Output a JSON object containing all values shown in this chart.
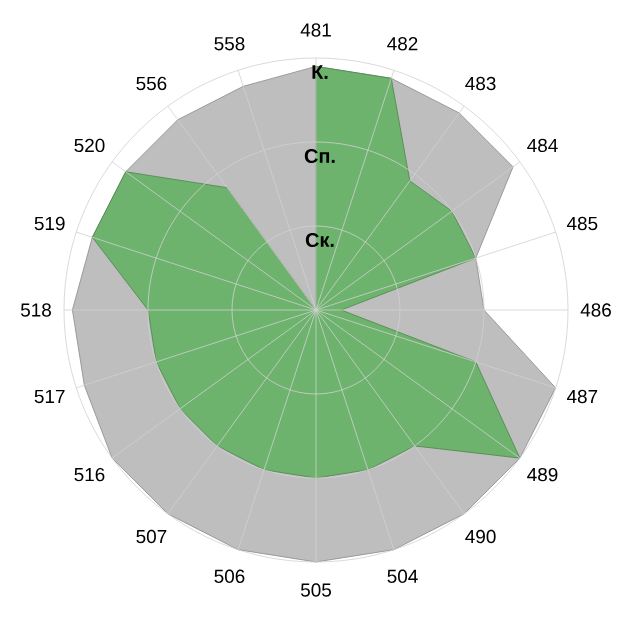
{
  "chart_data": {
    "type": "radar",
    "categories": [
      "481",
      "482",
      "483",
      "484",
      "485",
      "486",
      "487",
      "489",
      "490",
      "504",
      "505",
      "506",
      "507",
      "516",
      "517",
      "518",
      "519",
      "520",
      "556",
      "558"
    ],
    "series": [
      {
        "color": "#b8b8b8",
        "values": [
          2.9,
          2.9,
          2.9,
          2.9,
          2,
          2,
          3,
          3,
          3,
          3,
          3,
          3,
          3,
          3,
          2.9,
          2.9,
          2.8,
          2.8,
          2.8,
          2.8
        ]
      },
      {
        "color": "#66b266",
        "values": [
          2.9,
          2.9,
          1.9,
          2,
          2,
          0.3,
          2,
          3,
          2,
          2,
          2,
          2,
          2,
          2,
          2,
          2,
          2.8,
          2.8,
          1.8,
          0
        ]
      }
    ],
    "ylim": [
      0,
      3
    ],
    "yticks": [
      {
        "value": 1,
        "label": "Ск."
      },
      {
        "value": 2,
        "label": "Сп."
      },
      {
        "value": 3,
        "label": "К."
      }
    ],
    "grid": true
  }
}
